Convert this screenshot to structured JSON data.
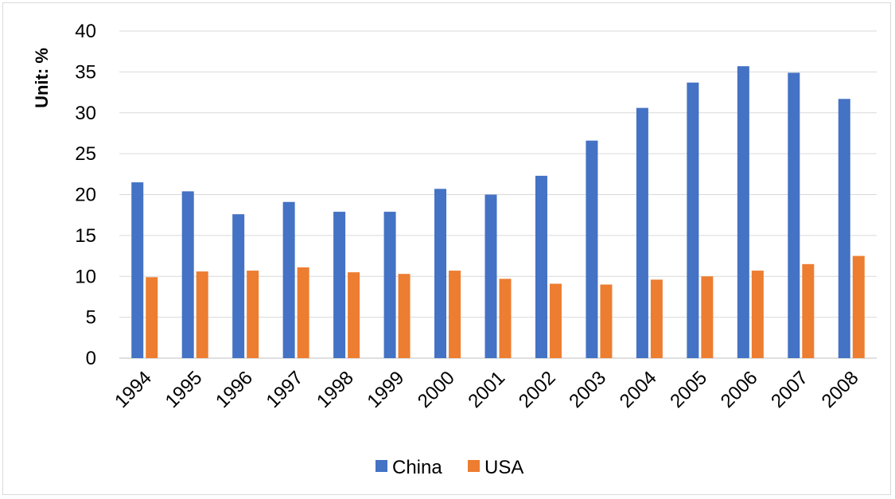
{
  "chart_data": {
    "type": "bar",
    "title": "",
    "xlabel": "",
    "ylabel": "Unit: %",
    "categories": [
      "1994",
      "1995",
      "1996",
      "1997",
      "1998",
      "1999",
      "2000",
      "2001",
      "2002",
      "2003",
      "2004",
      "2005",
      "2006",
      "2007",
      "2008"
    ],
    "series": [
      {
        "name": "China",
        "color": "#4472C4",
        "values": [
          21.5,
          20.4,
          17.6,
          19.1,
          17.9,
          17.9,
          20.7,
          20.0,
          22.3,
          26.6,
          30.6,
          33.7,
          35.7,
          34.9,
          31.7
        ]
      },
      {
        "name": "USA",
        "color": "#ED7D31",
        "values": [
          9.9,
          10.6,
          10.7,
          11.1,
          10.5,
          10.3,
          10.7,
          9.7,
          9.1,
          9.0,
          9.6,
          10.0,
          10.7,
          11.5,
          12.5
        ]
      }
    ],
    "ylim": [
      0,
      40
    ],
    "yticks": [
      "0",
      "5",
      "10",
      "15",
      "20",
      "25",
      "30",
      "35",
      "40"
    ],
    "grid": true,
    "legend_position": "bottom"
  }
}
